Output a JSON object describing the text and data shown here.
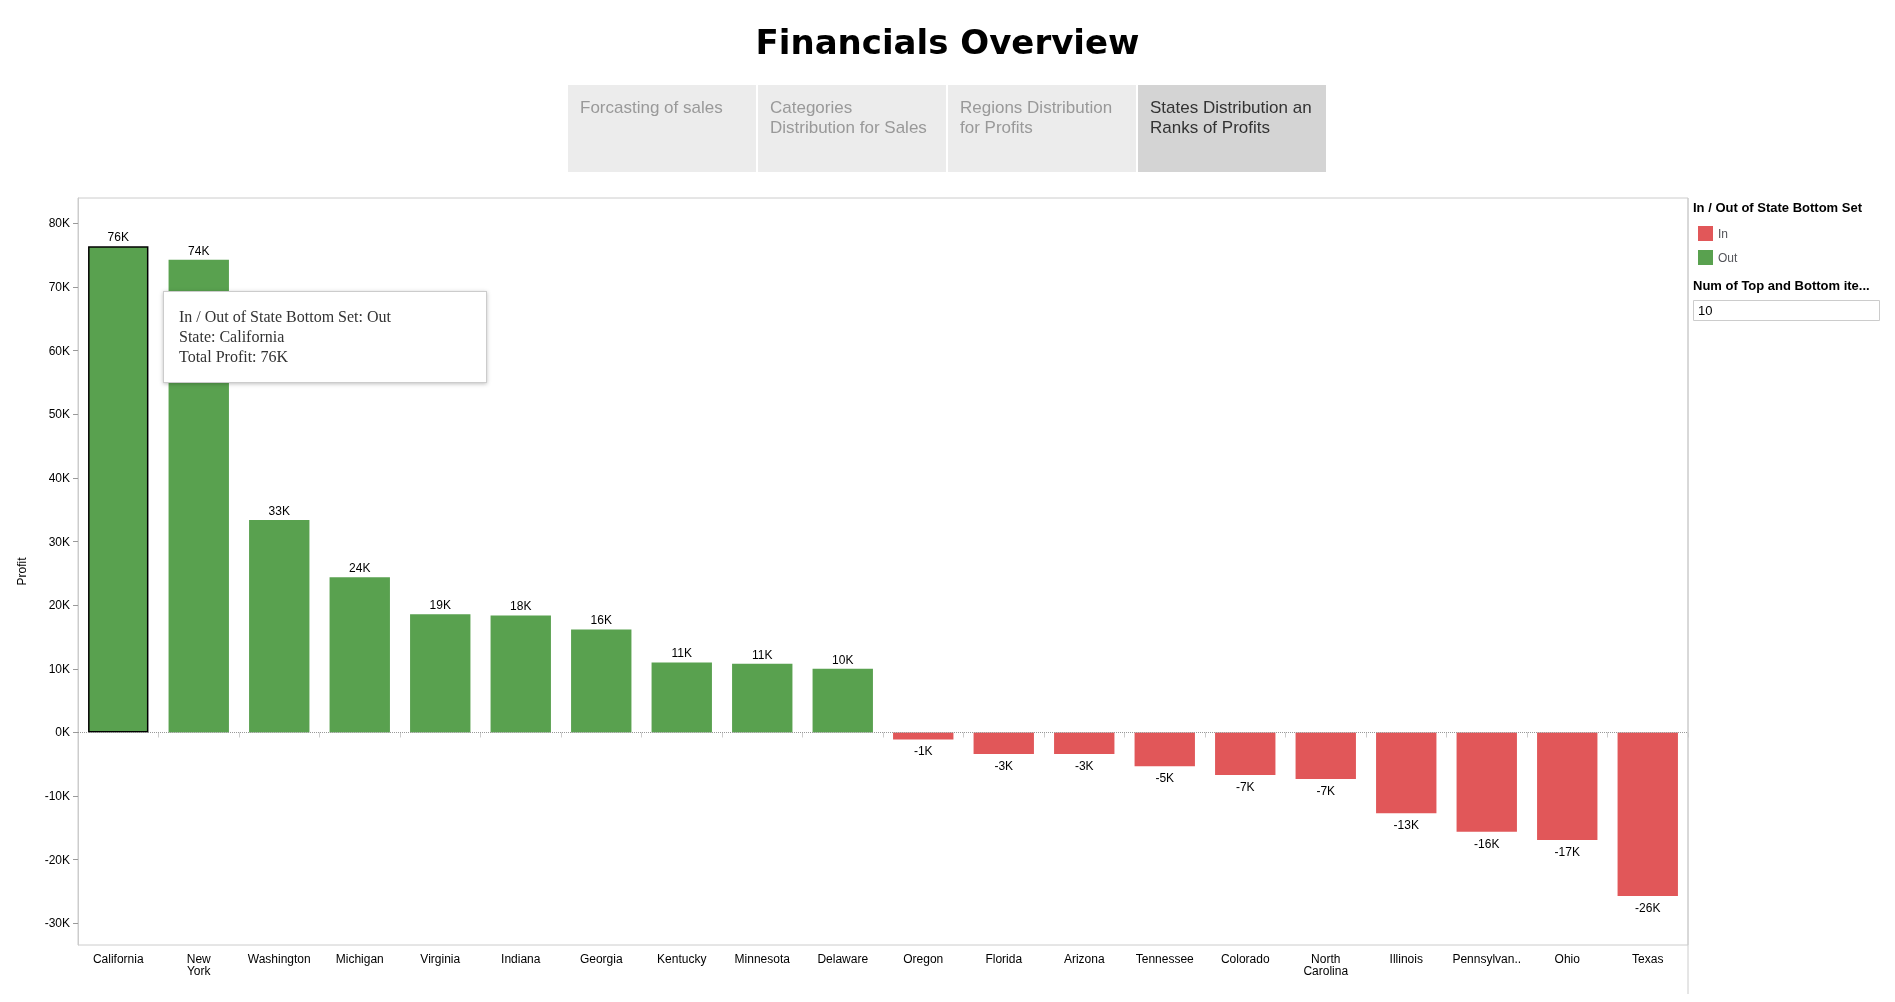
{
  "chart_data": {
    "type": "bar",
    "title": "Financials Overview",
    "ylabel": "Profit",
    "legend_title": "In / Out of State Bottom Set",
    "categories": [
      "California",
      "New York",
      "Washington",
      "Michigan",
      "Virginia",
      "Indiana",
      "Georgia",
      "Kentucky",
      "Minnesota",
      "Delaware",
      "Oregon",
      "Florida",
      "Arizona",
      "Tennessee",
      "Colorado",
      "North Carolina",
      "Illinois",
      "Pennsylvan..",
      "Ohio",
      "Texas"
    ],
    "series": [
      {
        "name": "In",
        "color": "#e15759",
        "values": [
          null,
          null,
          null,
          null,
          null,
          null,
          null,
          null,
          null,
          null,
          -1100,
          -3400,
          -3400,
          -5300,
          -6700,
          -7300,
          -12700,
          -15600,
          -16900,
          -25700
        ]
      },
      {
        "name": "Out",
        "color": "#59a14f",
        "values": [
          76400,
          74300,
          33400,
          24400,
          18600,
          18400,
          16200,
          11000,
          10800,
          10000,
          null,
          null,
          null,
          null,
          null,
          null,
          null,
          null,
          null,
          null
        ]
      }
    ],
    "stacked": true,
    "value_labels": [
      "76K",
      "74K",
      "33K",
      "24K",
      "19K",
      "18K",
      "16K",
      "11K",
      "11K",
      "10K",
      "-1K",
      "-3K",
      "-3K",
      "-5K",
      "-7K",
      "-7K",
      "-13K",
      "-16K",
      "-17K",
      "-26K"
    ],
    "ylim": [
      -33400,
      84000
    ],
    "yticks": [
      {
        "value": -30000,
        "label": "-30K"
      },
      {
        "value": -20000,
        "label": "-20K"
      },
      {
        "value": -10000,
        "label": "-10K"
      },
      {
        "value": 0,
        "label": "0K"
      },
      {
        "value": 10000,
        "label": "10K"
      },
      {
        "value": 20000,
        "label": "20K"
      },
      {
        "value": 30000,
        "label": "30K"
      },
      {
        "value": 40000,
        "label": "40K"
      },
      {
        "value": 50000,
        "label": "50K"
      },
      {
        "value": 60000,
        "label": "60K"
      },
      {
        "value": 70000,
        "label": "70K"
      },
      {
        "value": 80000,
        "label": "80K"
      }
    ],
    "grid": false,
    "legend": "right",
    "ref_lines": [
      {
        "axis": "y",
        "value": 0,
        "color": "#999999",
        "line_style": "dotted"
      }
    ],
    "annotations": [
      "Forcasting of sales",
      "Categories Distribution for Sales",
      "Regions Distribution for Profits",
      "States Distribution an Ranks of Profits",
      "Num of Top and Bottom ite...",
      "10",
      "In / Out of State Bottom Set: Out\nState: California\nTotal Profit: 76K"
    ]
  }
}
